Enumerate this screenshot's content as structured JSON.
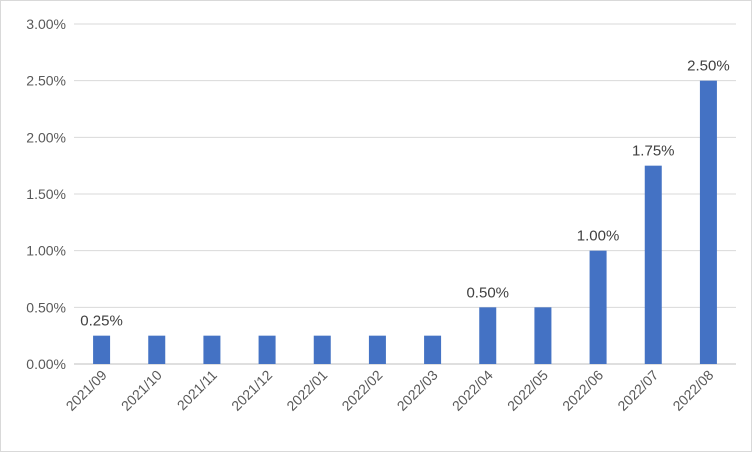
{
  "chart_data": {
    "type": "bar",
    "title": "",
    "xlabel": "",
    "ylabel": "",
    "categories": [
      "2021/09",
      "2021/10",
      "2021/11",
      "2021/12",
      "2022/01",
      "2022/02",
      "2022/03",
      "2022/04",
      "2022/05",
      "2022/06",
      "2022/07",
      "2022/08"
    ],
    "values": [
      0.25,
      0.25,
      0.25,
      0.25,
      0.25,
      0.25,
      0.25,
      0.5,
      0.5,
      1.0,
      1.75,
      2.5
    ],
    "ylim": [
      0,
      3.0
    ],
    "yticks": [
      "0.00%",
      "0.50%",
      "1.00%",
      "1.50%",
      "2.00%",
      "2.50%",
      "3.00%"
    ],
    "data_labels": [
      {
        "category": "2021/09",
        "text": "0.25%"
      },
      {
        "category": "2022/04",
        "text": "0.50%"
      },
      {
        "category": "2022/06",
        "text": "1.00%"
      },
      {
        "category": "2022/07",
        "text": "1.75%"
      },
      {
        "category": "2022/08",
        "text": "2.50%"
      }
    ],
    "grid": true,
    "legend": "none",
    "colors": {
      "bar": "#4472C4",
      "grid": "#d9d9d9",
      "text": "#595959"
    }
  }
}
